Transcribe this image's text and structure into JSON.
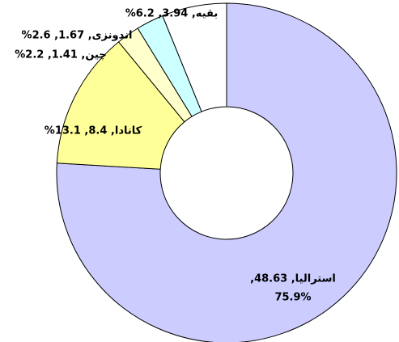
{
  "chart_data": {
    "type": "donut",
    "categories": [
      "استرالیا",
      "کانادا",
      "چین",
      "اندونزی",
      "بقیه"
    ],
    "values": [
      48.63,
      8.4,
      1.41,
      1.67,
      3.94
    ],
    "labels": [
      [
        "استرالیا, 48.63,",
        "75.9%"
      ],
      [
        "کانادا, 8.4, 13.1%"
      ],
      [
        "چین, 1.41, 2.2%"
      ],
      [
        "اندونزی, 1.67, 2.6%"
      ],
      [
        "بقیه, 3.94, 6.2%"
      ]
    ],
    "colors": [
      "#ccccff",
      "#ffff99",
      "#ffffcc",
      "#ccffff",
      "#ffffff"
    ]
  }
}
